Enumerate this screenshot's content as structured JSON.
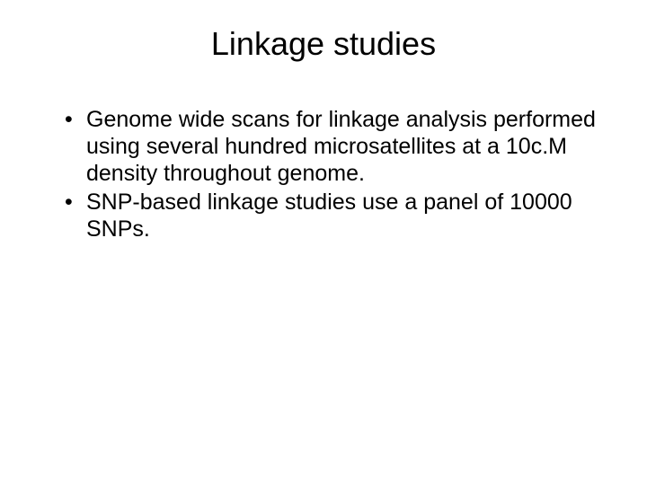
{
  "slide": {
    "title": "Linkage studies",
    "bullets": [
      "Genome wide scans for linkage analysis performed using several hundred microsatellites at a 10c.M density throughout genome.",
      "SNP-based linkage studies use a panel of 10000 SNPs."
    ],
    "background_color": "#ffffff",
    "text_color": "#000000",
    "title_fontsize": 36,
    "body_fontsize": 25,
    "font_family": "Arial"
  }
}
